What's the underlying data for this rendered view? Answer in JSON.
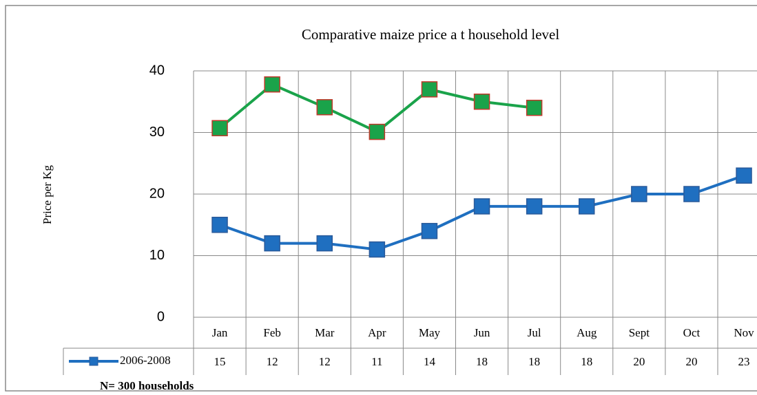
{
  "chart_data": {
    "type": "line",
    "title": "Comparative maize price a t household level",
    "y_label": "Price per Kg",
    "note": "N= 300 households",
    "categories": [
      "Jan",
      "Feb",
      "Mar",
      "Apr",
      "May",
      "Jun",
      "Jul",
      "Aug",
      "Sept",
      "Oct",
      "Nov"
    ],
    "series": [
      {
        "name": "2006-2008",
        "color": "#1f6fc0",
        "values": [
          15,
          12,
          12,
          11,
          14,
          18,
          18,
          18,
          20,
          20,
          23
        ]
      },
      {
        "color": "#1aa34a",
        "values": [
          30.7,
          37.8,
          34.1,
          30.1,
          37.0,
          35.0,
          34.0,
          null,
          null,
          null,
          null
        ]
      }
    ],
    "ylim": [
      0,
      40
    ],
    "yticks": [
      0,
      10,
      20,
      30,
      40
    ],
    "grid": true
  }
}
